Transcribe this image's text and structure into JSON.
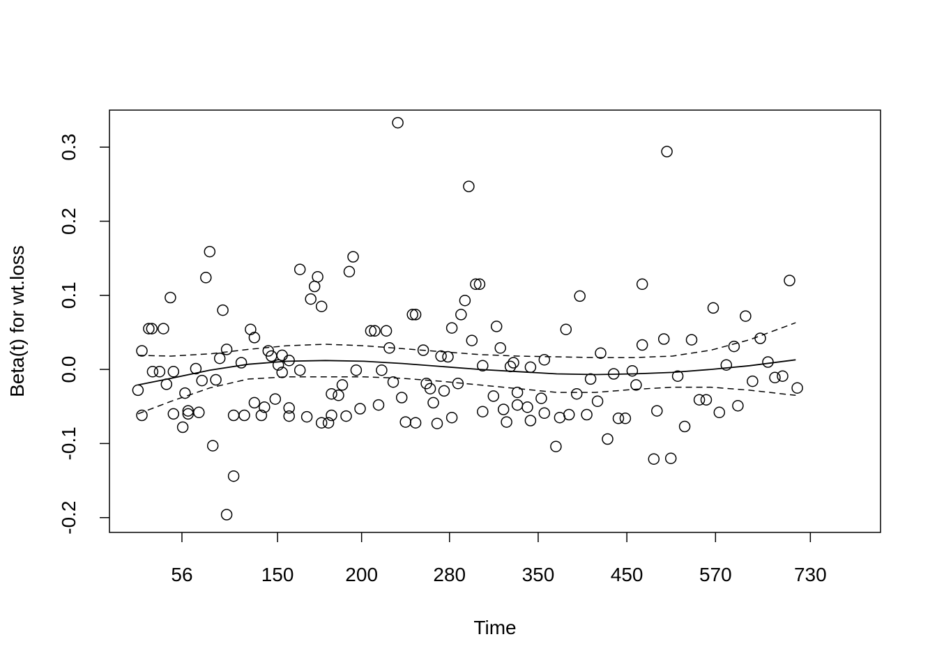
{
  "chart_data": {
    "type": "scatter",
    "title": "",
    "xlabel": "Time",
    "ylabel": "Beta(t) for wt.loss",
    "xlim": [
      0,
      1
    ],
    "ylim": [
      -0.22,
      0.35
    ],
    "grid": false,
    "x_tick_labels": [
      "56",
      "150",
      "200",
      "280",
      "350",
      "450",
      "570",
      "730"
    ],
    "x_tick_positions": [
      0.094,
      0.218,
      0.327,
      0.441,
      0.556,
      0.671,
      0.786,
      0.909
    ],
    "y_tick_labels": [
      "-0.2",
      "-0.1",
      "0.0",
      "0.1",
      "0.2",
      "0.3"
    ],
    "y_tick_values": [
      -0.2,
      -0.1,
      0.0,
      0.1,
      0.2,
      0.3
    ],
    "points": [
      [
        0.037,
        -0.028
      ],
      [
        0.042,
        -0.062
      ],
      [
        0.042,
        0.025
      ],
      [
        0.051,
        0.055
      ],
      [
        0.055,
        0.055
      ],
      [
        0.056,
        -0.003
      ],
      [
        0.065,
        -0.003
      ],
      [
        0.07,
        0.055
      ],
      [
        0.074,
        -0.02
      ],
      [
        0.079,
        0.097
      ],
      [
        0.083,
        -0.06
      ],
      [
        0.083,
        -0.003
      ],
      [
        0.095,
        -0.078
      ],
      [
        0.098,
        -0.032
      ],
      [
        0.102,
        -0.06
      ],
      [
        0.102,
        -0.056
      ],
      [
        0.112,
        0.001
      ],
      [
        0.116,
        -0.058
      ],
      [
        0.12,
        -0.015
      ],
      [
        0.125,
        0.124
      ],
      [
        0.13,
        0.159
      ],
      [
        0.134,
        -0.103
      ],
      [
        0.138,
        -0.014
      ],
      [
        0.143,
        0.015
      ],
      [
        0.147,
        0.08
      ],
      [
        0.152,
        0.027
      ],
      [
        0.152,
        -0.196
      ],
      [
        0.161,
        -0.144
      ],
      [
        0.161,
        -0.062
      ],
      [
        0.171,
        0.009
      ],
      [
        0.175,
        -0.062
      ],
      [
        0.183,
        0.054
      ],
      [
        0.188,
        0.043
      ],
      [
        0.188,
        -0.045
      ],
      [
        0.197,
        -0.062
      ],
      [
        0.201,
        -0.051
      ],
      [
        0.206,
        0.025
      ],
      [
        0.21,
        0.018
      ],
      [
        0.215,
        -0.04
      ],
      [
        0.219,
        0.006
      ],
      [
        0.224,
        0.019
      ],
      [
        0.224,
        -0.004
      ],
      [
        0.233,
        0.012
      ],
      [
        0.233,
        -0.052
      ],
      [
        0.233,
        -0.063
      ],
      [
        0.247,
        0.135
      ],
      [
        0.247,
        -0.001
      ],
      [
        0.256,
        -0.064
      ],
      [
        0.261,
        0.095
      ],
      [
        0.266,
        0.112
      ],
      [
        0.27,
        0.125
      ],
      [
        0.275,
        0.085
      ],
      [
        0.275,
        -0.072
      ],
      [
        0.284,
        -0.072
      ],
      [
        0.288,
        -0.033
      ],
      [
        0.288,
        -0.062
      ],
      [
        0.297,
        -0.035
      ],
      [
        0.302,
        -0.021
      ],
      [
        0.307,
        -0.063
      ],
      [
        0.311,
        0.132
      ],
      [
        0.316,
        0.152
      ],
      [
        0.32,
        -0.001
      ],
      [
        0.325,
        -0.053
      ],
      [
        0.339,
        0.052
      ],
      [
        0.344,
        0.052
      ],
      [
        0.349,
        -0.048
      ],
      [
        0.353,
        -0.001
      ],
      [
        0.359,
        0.052
      ],
      [
        0.363,
        0.029
      ],
      [
        0.368,
        -0.017
      ],
      [
        0.374,
        0.333
      ],
      [
        0.379,
        -0.038
      ],
      [
        0.384,
        -0.071
      ],
      [
        0.393,
        0.074
      ],
      [
        0.397,
        0.074
      ],
      [
        0.397,
        -0.072
      ],
      [
        0.407,
        0.026
      ],
      [
        0.411,
        -0.019
      ],
      [
        0.416,
        -0.026
      ],
      [
        0.42,
        -0.045
      ],
      [
        0.425,
        -0.073
      ],
      [
        0.43,
        0.018
      ],
      [
        0.434,
        -0.029
      ],
      [
        0.439,
        0.017
      ],
      [
        0.444,
        0.056
      ],
      [
        0.444,
        -0.065
      ],
      [
        0.452,
        -0.019
      ],
      [
        0.456,
        0.074
      ],
      [
        0.461,
        0.093
      ],
      [
        0.466,
        0.247
      ],
      [
        0.47,
        0.039
      ],
      [
        0.475,
        0.115
      ],
      [
        0.48,
        0.115
      ],
      [
        0.484,
        -0.057
      ],
      [
        0.484,
        0.005
      ],
      [
        0.498,
        -0.036
      ],
      [
        0.502,
        0.058
      ],
      [
        0.507,
        0.029
      ],
      [
        0.511,
        -0.054
      ],
      [
        0.515,
        -0.071
      ],
      [
        0.52,
        0.004
      ],
      [
        0.524,
        0.009
      ],
      [
        0.529,
        -0.031
      ],
      [
        0.529,
        -0.048
      ],
      [
        0.542,
        -0.051
      ],
      [
        0.546,
        0.003
      ],
      [
        0.546,
        -0.069
      ],
      [
        0.56,
        -0.039
      ],
      [
        0.564,
        0.013
      ],
      [
        0.564,
        -0.059
      ],
      [
        0.579,
        -0.104
      ],
      [
        0.584,
        -0.065
      ],
      [
        0.592,
        0.054
      ],
      [
        0.596,
        -0.061
      ],
      [
        0.606,
        -0.033
      ],
      [
        0.61,
        0.099
      ],
      [
        0.619,
        -0.061
      ],
      [
        0.624,
        -0.013
      ],
      [
        0.633,
        -0.043
      ],
      [
        0.637,
        0.022
      ],
      [
        0.646,
        -0.094
      ],
      [
        0.654,
        -0.006
      ],
      [
        0.66,
        -0.066
      ],
      [
        0.669,
        -0.066
      ],
      [
        0.678,
        -0.002
      ],
      [
        0.683,
        -0.021
      ],
      [
        0.691,
        0.115
      ],
      [
        0.691,
        0.033
      ],
      [
        0.706,
        -0.121
      ],
      [
        0.71,
        -0.056
      ],
      [
        0.719,
        0.041
      ],
      [
        0.723,
        0.294
      ],
      [
        0.728,
        -0.12
      ],
      [
        0.737,
        -0.009
      ],
      [
        0.746,
        -0.077
      ],
      [
        0.755,
        0.04
      ],
      [
        0.765,
        -0.041
      ],
      [
        0.774,
        -0.041
      ],
      [
        0.783,
        0.083
      ],
      [
        0.791,
        -0.058
      ],
      [
        0.8,
        0.006
      ],
      [
        0.81,
        0.031
      ],
      [
        0.815,
        -0.049
      ],
      [
        0.825,
        0.072
      ],
      [
        0.834,
        -0.016
      ],
      [
        0.844,
        0.042
      ],
      [
        0.854,
        0.01
      ],
      [
        0.863,
        -0.011
      ],
      [
        0.873,
        -0.009
      ],
      [
        0.882,
        0.12
      ],
      [
        0.892,
        -0.025
      ]
    ],
    "fit_line": [
      [
        0.037,
        -0.021
      ],
      [
        0.08,
        -0.012
      ],
      [
        0.13,
        -0.001
      ],
      [
        0.18,
        0.007
      ],
      [
        0.23,
        0.011
      ],
      [
        0.28,
        0.012
      ],
      [
        0.33,
        0.011
      ],
      [
        0.38,
        0.008
      ],
      [
        0.43,
        0.004
      ],
      [
        0.48,
        0.0
      ],
      [
        0.53,
        -0.003
      ],
      [
        0.58,
        -0.006
      ],
      [
        0.63,
        -0.007
      ],
      [
        0.68,
        -0.006
      ],
      [
        0.73,
        -0.004
      ],
      [
        0.78,
        0.0
      ],
      [
        0.83,
        0.005
      ],
      [
        0.89,
        0.013
      ]
    ],
    "upper_band": [
      [
        0.037,
        0.019
      ],
      [
        0.08,
        0.018
      ],
      [
        0.13,
        0.021
      ],
      [
        0.18,
        0.027
      ],
      [
        0.23,
        0.032
      ],
      [
        0.28,
        0.034
      ],
      [
        0.33,
        0.032
      ],
      [
        0.38,
        0.028
      ],
      [
        0.43,
        0.024
      ],
      [
        0.48,
        0.02
      ],
      [
        0.53,
        0.018
      ],
      [
        0.58,
        0.017
      ],
      [
        0.63,
        0.016
      ],
      [
        0.68,
        0.016
      ],
      [
        0.73,
        0.018
      ],
      [
        0.78,
        0.026
      ],
      [
        0.83,
        0.04
      ],
      [
        0.89,
        0.063
      ]
    ],
    "lower_band": [
      [
        0.037,
        -0.06
      ],
      [
        0.08,
        -0.043
      ],
      [
        0.13,
        -0.025
      ],
      [
        0.18,
        -0.013
      ],
      [
        0.23,
        -0.01
      ],
      [
        0.28,
        -0.01
      ],
      [
        0.33,
        -0.01
      ],
      [
        0.38,
        -0.012
      ],
      [
        0.43,
        -0.016
      ],
      [
        0.48,
        -0.021
      ],
      [
        0.53,
        -0.026
      ],
      [
        0.58,
        -0.031
      ],
      [
        0.63,
        -0.031
      ],
      [
        0.68,
        -0.027
      ],
      [
        0.73,
        -0.024
      ],
      [
        0.78,
        -0.024
      ],
      [
        0.83,
        -0.028
      ],
      [
        0.89,
        -0.035
      ]
    ]
  }
}
